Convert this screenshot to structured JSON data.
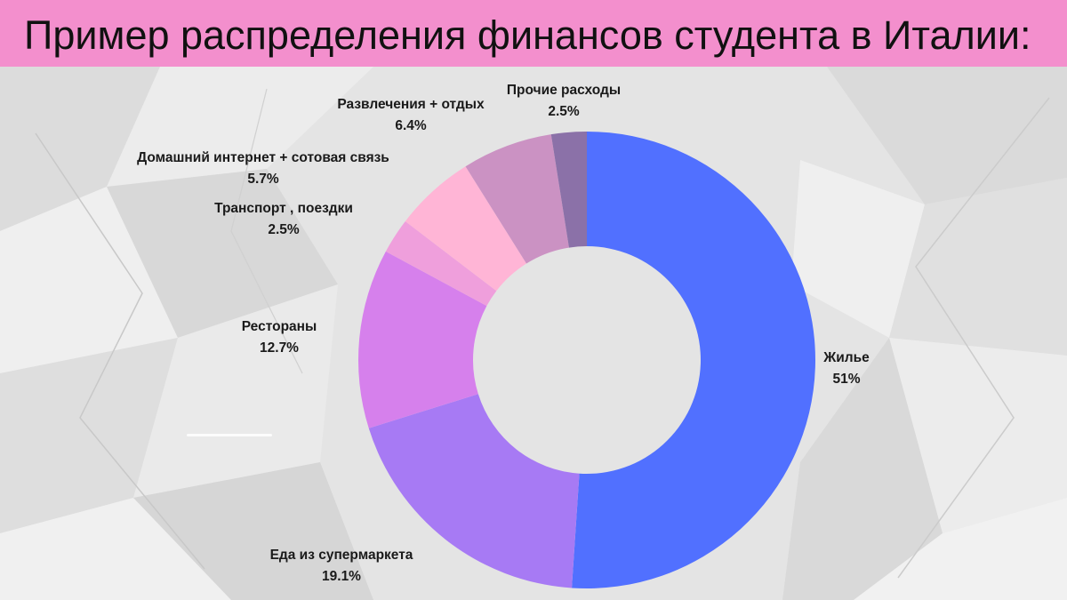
{
  "page": {
    "title": "Пример распределения финансов студента в Италии:"
  },
  "colors": {
    "title_bar": "#f38fcd",
    "background": "#e6e6e6"
  },
  "chart_data": {
    "type": "pie",
    "variant": "donut",
    "title": "",
    "legend": "none",
    "slices": [
      {
        "label": "Жилье",
        "value": 51,
        "value_label": "51%",
        "color": "#5170ff"
      },
      {
        "label": "Еда из супермаркета",
        "value": 19.1,
        "value_label": "19.1%",
        "color": "#a77af4"
      },
      {
        "label": "Рестораны",
        "value": 12.7,
        "value_label": "12.7%",
        "color": "#d680ec"
      },
      {
        "label": "Транспорт , поездки",
        "value": 2.5,
        "value_label": "2.5%",
        "color": "#ef9fdc"
      },
      {
        "label": "Домашний интернет + сотовая связь",
        "value": 5.7,
        "value_label": "5.7%",
        "color": "#ffb5d6"
      },
      {
        "label": "Развлечения + отдых",
        "value": 6.4,
        "value_label": "6.4%",
        "color": "#cb92c3"
      },
      {
        "label": "Прочие расходы",
        "value": 2.5,
        "value_label": "2.5%",
        "color": "#8b71a8"
      }
    ]
  }
}
